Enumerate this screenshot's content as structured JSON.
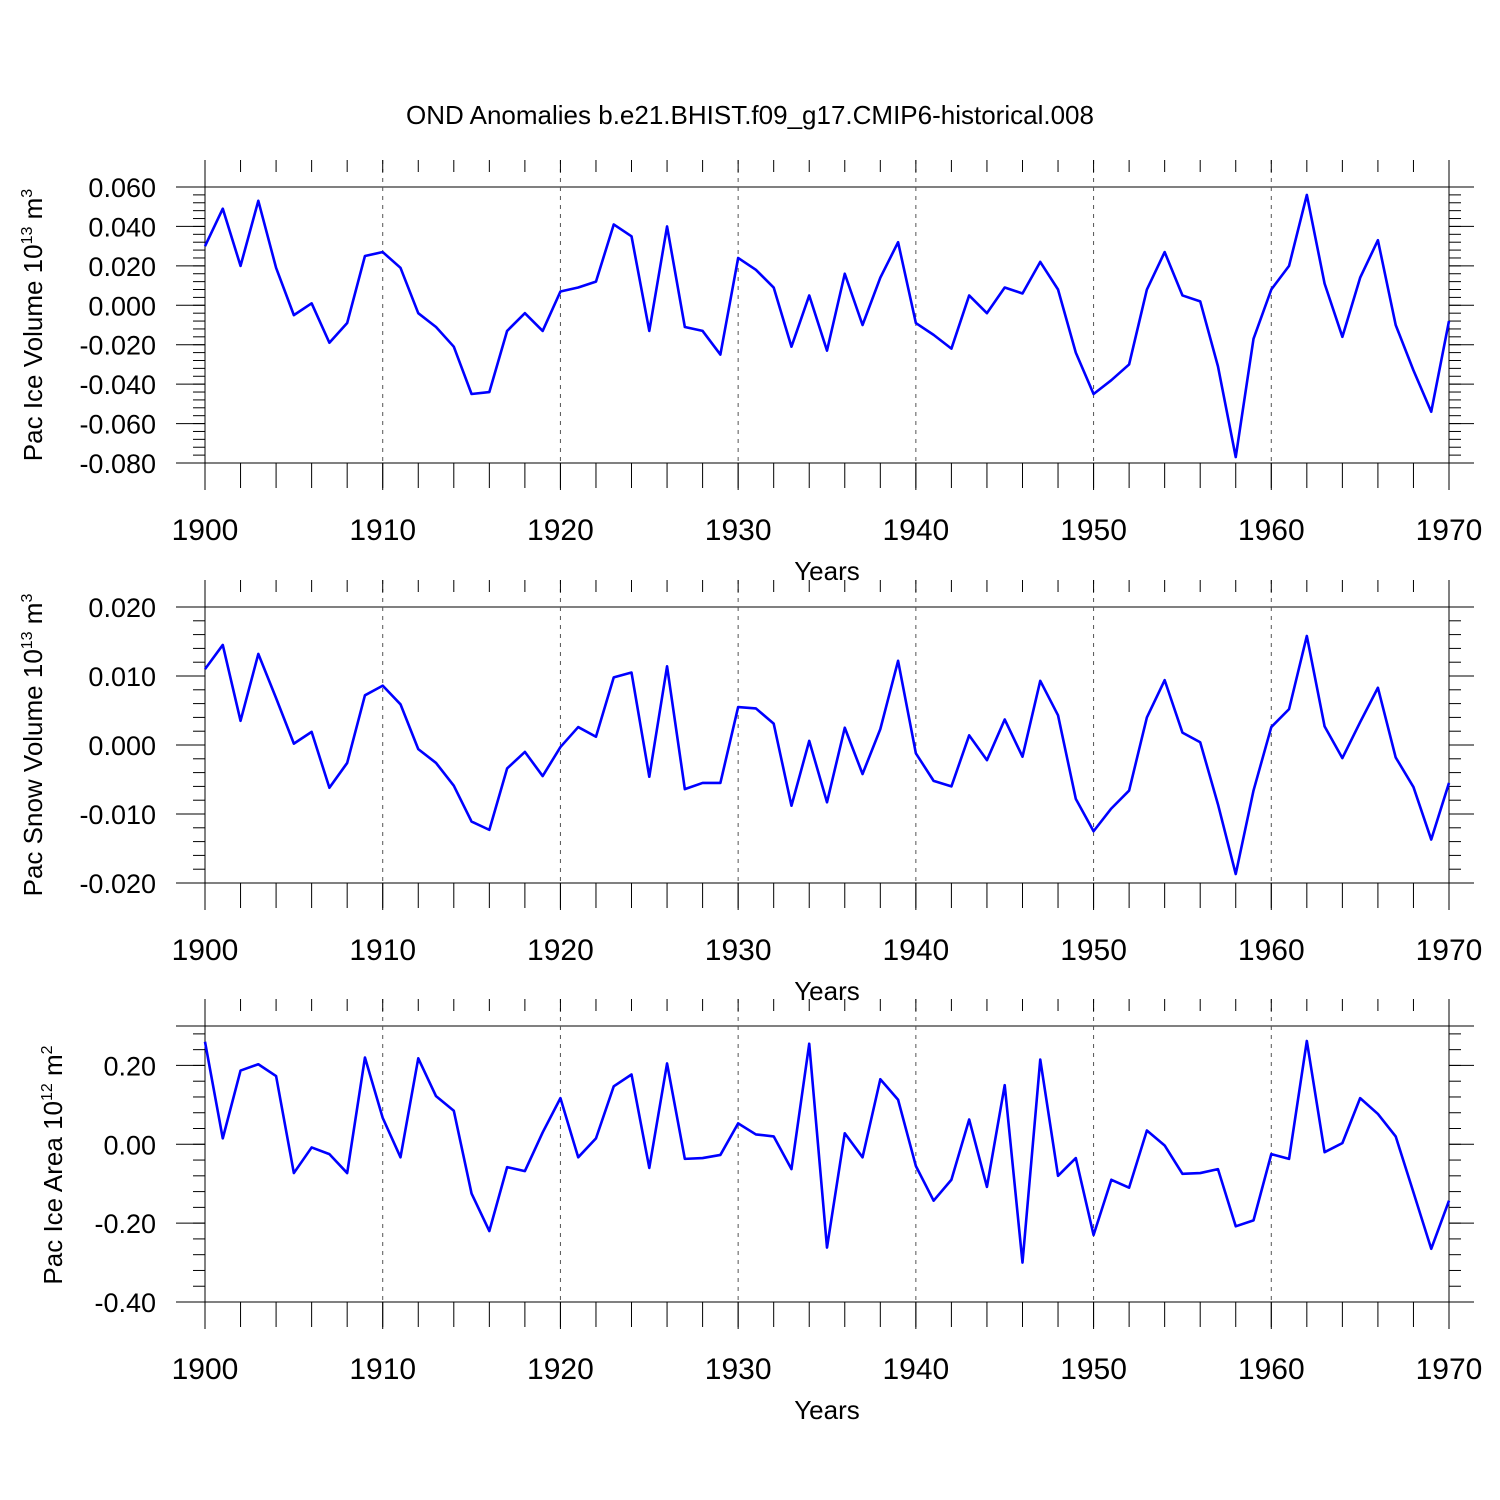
{
  "figure_title": "OND Anomalies b.e21.BHIST.f09_g17.CMIP6-historical.008",
  "colors": {
    "series": "#0000ff",
    "axes": "#000000",
    "grid": "#555555"
  },
  "chart_data": [
    {
      "type": "line",
      "title": "OND Anomalies b.e21.BHIST.f09_g17.CMIP6-historical.008",
      "ylabel": "Pac Ice Volume 10",
      "ylabel_exp": "13",
      "ylabel_unit": " m",
      "ylabel_unit_exp": "3",
      "xlabel": "Years",
      "xlim": [
        1900,
        1970
      ],
      "ylim": [
        -0.08,
        0.06
      ],
      "y_ticks": [
        0.06,
        0.04,
        0.02,
        0.0,
        -0.02,
        -0.04,
        -0.06,
        -0.08
      ],
      "y_tick_labels": [
        "0.060",
        "0.040",
        "0.020",
        "0.000",
        "-0.020",
        "-0.040",
        "-0.060",
        "-0.080"
      ],
      "x_ticks": [
        1900,
        1910,
        1920,
        1930,
        1940,
        1950,
        1960,
        1970
      ],
      "x_tick_labels": [
        "1900",
        "1910",
        "1920",
        "1930",
        "1940",
        "1950",
        "1960",
        "1970"
      ],
      "grid": "dashed vertical at decades",
      "series": [
        {
          "name": "Pac Ice Volume",
          "x_start": 1900,
          "values": [
            0.03,
            0.049,
            0.02,
            0.053,
            0.019,
            -0.005,
            0.001,
            -0.019,
            -0.009,
            0.025,
            0.027,
            0.019,
            -0.004,
            -0.011,
            -0.021,
            -0.045,
            -0.044,
            -0.013,
            -0.004,
            -0.013,
            0.007,
            0.009,
            0.012,
            0.041,
            0.035,
            -0.013,
            0.04,
            -0.011,
            -0.013,
            -0.025,
            0.024,
            0.018,
            0.009,
            -0.021,
            0.005,
            -0.023,
            0.016,
            -0.01,
            0.014,
            0.032,
            -0.009,
            -0.015,
            -0.022,
            0.005,
            -0.004,
            0.009,
            0.006,
            0.022,
            0.008,
            -0.024,
            -0.045,
            -0.038,
            -0.03,
            0.008,
            0.027,
            0.005,
            0.002,
            -0.031,
            -0.077,
            -0.017,
            0.008,
            0.02,
            0.056,
            0.011,
            -0.016,
            0.014,
            0.033,
            -0.01,
            -0.033,
            -0.054,
            -0.008
          ]
        }
      ]
    },
    {
      "type": "line",
      "ylabel": "Pac Snow Volume 10",
      "ylabel_exp": "13",
      "ylabel_unit": " m",
      "ylabel_unit_exp": "3",
      "xlabel": "Years",
      "xlim": [
        1900,
        1970
      ],
      "ylim": [
        -0.02,
        0.02
      ],
      "y_ticks": [
        0.02,
        0.01,
        0.0,
        -0.01,
        -0.02
      ],
      "y_tick_labels": [
        "0.020",
        "0.010",
        "0.000",
        "-0.010",
        "-0.020"
      ],
      "x_ticks": [
        1900,
        1910,
        1920,
        1930,
        1940,
        1950,
        1960,
        1970
      ],
      "x_tick_labels": [
        "1900",
        "1910",
        "1920",
        "1930",
        "1940",
        "1950",
        "1960",
        "1970"
      ],
      "grid": "dashed vertical at decades",
      "series": [
        {
          "name": "Pac Snow Volume",
          "x_start": 1900,
          "values": [
            0.011,
            0.0145,
            0.0035,
            0.0132,
            0.0068,
            0.0002,
            0.0019,
            -0.0062,
            -0.0026,
            0.0072,
            0.0086,
            0.0059,
            -0.0006,
            -0.0026,
            -0.0059,
            -0.0111,
            -0.0123,
            -0.0034,
            -0.001,
            -0.0045,
            -0.0003,
            0.0026,
            0.0012,
            0.0098,
            0.0105,
            -0.0046,
            0.0114,
            -0.0064,
            -0.0055,
            -0.0055,
            0.0055,
            0.0053,
            0.0031,
            -0.0088,
            0.0006,
            -0.0083,
            0.0025,
            -0.0042,
            0.0023,
            0.0122,
            -0.0012,
            -0.0052,
            -0.006,
            0.0014,
            -0.0022,
            0.0037,
            -0.0017,
            0.0093,
            0.0043,
            -0.0078,
            -0.0125,
            -0.0092,
            -0.0066,
            0.004,
            0.0094,
            0.0018,
            0.0004,
            -0.0086,
            -0.0187,
            -0.0066,
            0.0026,
            0.0052,
            0.0158,
            0.0027,
            -0.0019,
            0.0033,
            0.0083,
            -0.0018,
            -0.0061,
            -0.0137,
            -0.0055
          ]
        }
      ]
    },
    {
      "type": "line",
      "ylabel": "Pac Ice Area 10",
      "ylabel_exp": "12",
      "ylabel_unit": " m",
      "ylabel_unit_exp": "2",
      "xlabel": "Years",
      "xlim": [
        1900,
        1970
      ],
      "ylim": [
        -0.4,
        0.3
      ],
      "y_ticks": [
        0.2,
        0.0,
        -0.2,
        -0.4
      ],
      "y_tick_labels": [
        "0.20",
        "0.00",
        "-0.20",
        "-0.40"
      ],
      "x_ticks": [
        1900,
        1910,
        1920,
        1930,
        1940,
        1950,
        1960,
        1970
      ],
      "x_tick_labels": [
        "1900",
        "1910",
        "1920",
        "1930",
        "1940",
        "1950",
        "1960",
        "1970"
      ],
      "grid": "dashed vertical at decades",
      "series": [
        {
          "name": "Pac Ice Area",
          "x_start": 1900,
          "values": [
            0.26,
            0.015,
            0.187,
            0.203,
            0.173,
            -0.073,
            -0.008,
            -0.025,
            -0.073,
            0.22,
            0.067,
            -0.033,
            0.218,
            0.122,
            0.085,
            -0.125,
            -0.22,
            -0.058,
            -0.068,
            0.03,
            0.117,
            -0.033,
            0.015,
            0.147,
            0.177,
            -0.06,
            0.205,
            -0.037,
            -0.035,
            -0.027,
            0.053,
            0.025,
            0.02,
            -0.063,
            0.255,
            -0.262,
            0.028,
            -0.033,
            0.165,
            0.113,
            -0.055,
            -0.143,
            -0.09,
            0.063,
            -0.108,
            0.15,
            -0.3,
            0.215,
            -0.08,
            -0.035,
            -0.23,
            -0.09,
            -0.11,
            0.035,
            -0.003,
            -0.075,
            -0.073,
            -0.063,
            -0.208,
            -0.193,
            -0.025,
            -0.037,
            0.262,
            -0.02,
            0.003,
            0.117,
            0.077,
            0.02,
            -0.122,
            -0.265,
            -0.143
          ]
        }
      ]
    }
  ]
}
